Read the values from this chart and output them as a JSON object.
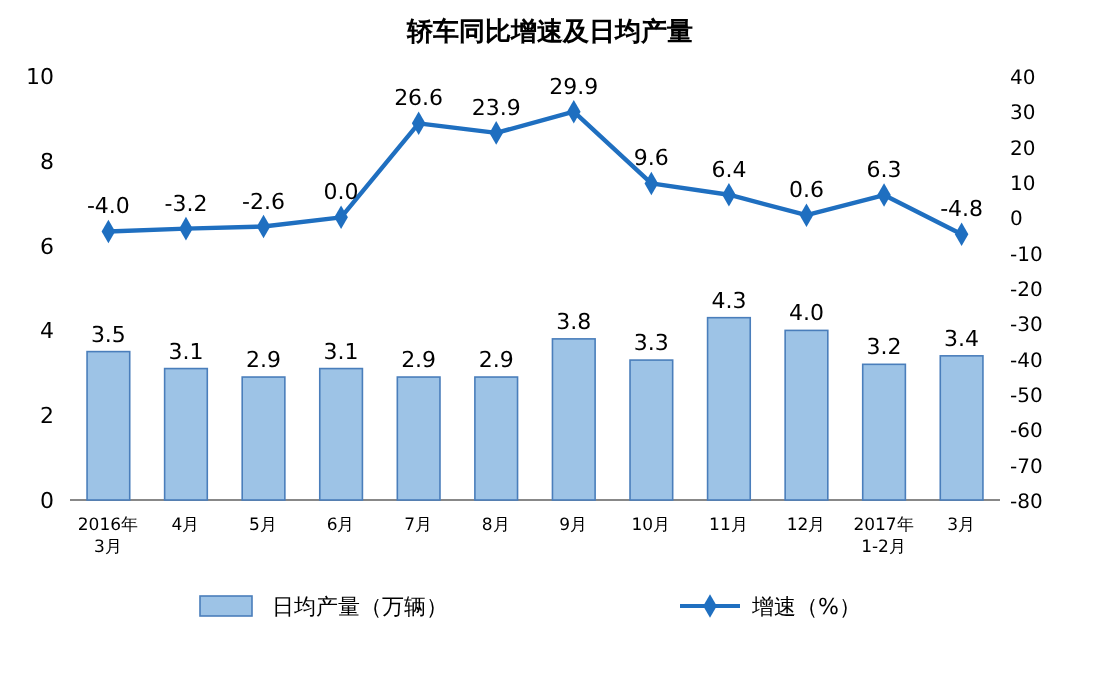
{
  "chart_data": {
    "type": "bar",
    "title": "轿车同比增速及日均产量",
    "categories": [
      "2016年\n3月",
      "4月",
      "5月",
      "6月",
      "7月",
      "8月",
      "9月",
      "10月",
      "11月",
      "12月",
      "2017年\n1-2月",
      "3月"
    ],
    "series": [
      {
        "name": "日均产量（万辆）",
        "color": "#9dc3e6",
        "values": [
          3.5,
          3.1,
          2.9,
          3.1,
          2.9,
          2.9,
          3.8,
          3.3,
          4.3,
          4.0,
          3.2,
          3.4
        ],
        "value_labels": [
          "3.5",
          "3.1",
          "2.9",
          "3.1",
          "2.9",
          "2.9",
          "3.8",
          "3.3",
          "4.3",
          "4.0",
          "3.2",
          "3.4"
        ]
      },
      {
        "name": "增速（%）",
        "type": "line",
        "axis": "y2",
        "color": "#1f6fc0",
        "marker": "diamond",
        "values": [
          -4.0,
          -3.2,
          -2.6,
          0.0,
          26.6,
          23.9,
          29.9,
          9.6,
          6.4,
          0.6,
          6.3,
          -4.8
        ],
        "value_labels": [
          "-4.0",
          "-3.2",
          "-2.6",
          "0.0",
          "26.6",
          "23.9",
          "29.9",
          "9.6",
          "6.4",
          "0.6",
          "6.3",
          "-4.8"
        ]
      }
    ],
    "ylim": [
      0,
      10
    ],
    "yticks": [
      0,
      2,
      4,
      6,
      8,
      10
    ],
    "y2lim": [
      -80,
      40
    ],
    "y2ticks": [
      -80,
      -70,
      -60,
      -50,
      -40,
      -30,
      -20,
      -10,
      0,
      10,
      20,
      30,
      40
    ],
    "legend": "bottom"
  }
}
